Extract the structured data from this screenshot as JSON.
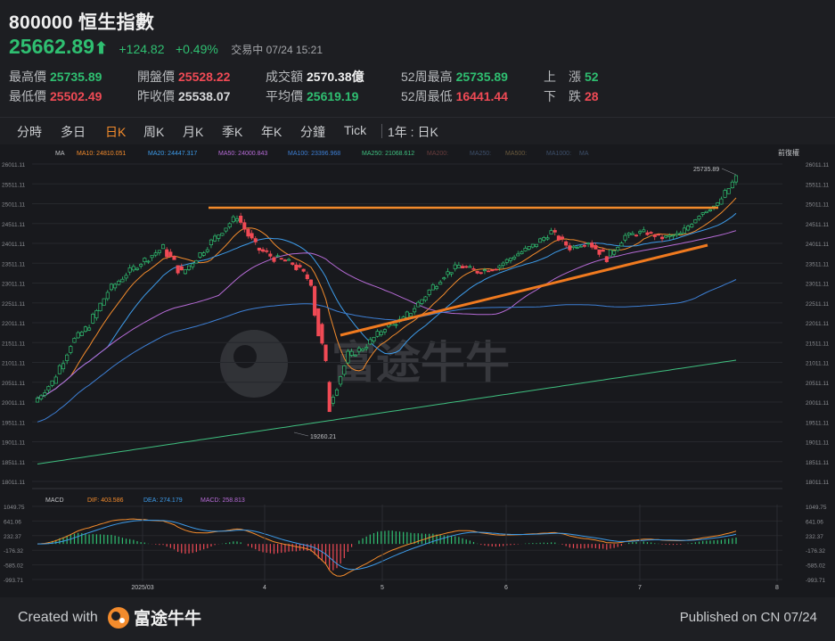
{
  "header": {
    "code": "800000",
    "name": "恒生指數",
    "price": "25662.89",
    "change": "+124.82",
    "change_pct": "+0.49%",
    "status": "交易中 07/24 15:21"
  },
  "stats": [
    {
      "label": "最高價",
      "value": "25735.89",
      "color": "#2fbf71"
    },
    {
      "label": "最低價",
      "value": "25502.49",
      "color": "#f04a55"
    },
    {
      "label": "開盤價",
      "value": "25528.22",
      "color": "#f04a55"
    },
    {
      "label": "昨收價",
      "value": "25538.07",
      "color": "#d7d8da"
    },
    {
      "label": "成交額",
      "value": "2570.38億",
      "color": "#f0f0f0"
    },
    {
      "label": "平均價",
      "value": "25619.19",
      "color": "#2fbf71"
    },
    {
      "label": "52周最高",
      "value": "25735.89",
      "color": "#2fbf71"
    },
    {
      "label": "52周最低",
      "value": "16441.44",
      "color": "#f04a55"
    },
    {
      "label": "上　漲",
      "value": "52",
      "color": "#2fbf71"
    },
    {
      "label": "下　跌",
      "value": "28",
      "color": "#f04a55"
    }
  ],
  "tabs": [
    "分時",
    "多日",
    "日K",
    "周K",
    "月K",
    "季K",
    "年K",
    "分鐘",
    "Tick",
    "1年 : 日K"
  ],
  "active_tab": "日K",
  "legend": {
    "ma": "MA",
    "items": [
      {
        "label": "MA10:",
        "value": "24810.051",
        "color": "#f38b2c"
      },
      {
        "label": "MA20:",
        "value": "24447.317",
        "color": "#3d9be9"
      },
      {
        "label": "MA50:",
        "value": "24000.843",
        "color": "#b66bd6"
      },
      {
        "label": "MA100:",
        "value": "23396.968",
        "color": "#3d7fd4"
      },
      {
        "label": "MA250:",
        "value": "21068.612",
        "color": "#3fbf7f"
      },
      {
        "label": "MA200:",
        "value": "",
        "color": "#6a3d3d"
      },
      {
        "label": "MA250:",
        "value": "",
        "color": "#3d4f6a"
      },
      {
        "label": "MA500:",
        "value": "",
        "color": "#6a5a3d"
      },
      {
        "label": "MA1000:",
        "value": "",
        "color": "#3d4f6a"
      },
      {
        "label": "MA",
        "value": "",
        "color": "#3d4f6a"
      }
    ],
    "right_label": "前復權"
  },
  "chart_data": {
    "type": "candlestick",
    "y_ticks": [
      "26011.11",
      "25511.11",
      "25011.11",
      "24511.11",
      "24011.11",
      "23511.11",
      "23011.11",
      "22511.11",
      "22011.11",
      "21511.11",
      "21011.11",
      "20511.11",
      "20011.11",
      "19511.11",
      "19011.11",
      "18511.11",
      "18011.11"
    ],
    "ylim": [
      18011.11,
      26011.11
    ],
    "x_labels": [
      "2025/03",
      "4",
      "5",
      "6",
      "7",
      "8"
    ],
    "annotations": {
      "high": "25735.89",
      "low": "19260.21"
    },
    "ohlc_weekly_approx": [
      [
        20010,
        20600,
        19950,
        20520
      ],
      [
        20520,
        21600,
        20480,
        21500
      ],
      [
        21500,
        22050,
        21380,
        21950
      ],
      [
        21950,
        22900,
        21800,
        22800
      ],
      [
        22800,
        23400,
        22600,
        23250
      ],
      [
        23250,
        23700,
        23050,
        23600
      ],
      [
        23600,
        24200,
        23400,
        23900
      ],
      [
        23900,
        24050,
        22950,
        23250
      ],
      [
        23250,
        23950,
        23150,
        23750
      ],
      [
        23750,
        24450,
        23650,
        24250
      ],
      [
        24250,
        24850,
        24150,
        24700
      ],
      [
        24700,
        24900,
        23700,
        23900
      ],
      [
        23900,
        24200,
        23350,
        23650
      ],
      [
        23650,
        24100,
        23450,
        23500
      ],
      [
        23500,
        23750,
        22800,
        23050
      ],
      [
        23050,
        23300,
        19260,
        20050
      ],
      [
        20050,
        21350,
        19900,
        21150
      ],
      [
        21150,
        21650,
        20950,
        21450
      ],
      [
        21450,
        22000,
        21350,
        21900
      ],
      [
        21900,
        22350,
        21750,
        22100
      ],
      [
        22100,
        22800,
        21950,
        22600
      ],
      [
        22600,
        23350,
        22400,
        23150
      ],
      [
        23150,
        23650,
        23000,
        23450
      ],
      [
        23450,
        23750,
        23150,
        23300
      ],
      [
        23300,
        23500,
        23050,
        23400
      ],
      [
        23400,
        23850,
        23300,
        23700
      ],
      [
        23700,
        24150,
        23550,
        23950
      ],
      [
        23950,
        24450,
        23800,
        24300
      ],
      [
        24300,
        24400,
        23750,
        23900
      ],
      [
        23900,
        24200,
        23700,
        24050
      ],
      [
        24050,
        24300,
        23450,
        23650
      ],
      [
        23650,
        24300,
        23600,
        24200
      ],
      [
        24200,
        24450,
        24000,
        24300
      ],
      [
        24300,
        24550,
        24050,
        24150
      ],
      [
        24150,
        24350,
        23900,
        24250
      ],
      [
        24250,
        24850,
        24200,
        24750
      ],
      [
        24750,
        25050,
        24650,
        25000
      ],
      [
        25000,
        25736,
        24950,
        25663
      ]
    ],
    "macd": {
      "labels": {
        "name": "MACD",
        "dif": "DIF:",
        "dif_value": "403.586",
        "dea": "DEA:",
        "dea_value": "274.179",
        "macd": "MACD:",
        "macd_value": "258.813"
      },
      "y_ticks": [
        "1049.75",
        "641.06",
        "232.37",
        "-176.32",
        "-585.02",
        "-993.71"
      ],
      "ylim": [
        -993.71,
        1049.75
      ]
    }
  },
  "footer": {
    "created_with": "Created with",
    "brand": "富途牛牛",
    "published": "Published on CN 07/24"
  },
  "watermark": "富途牛牛"
}
